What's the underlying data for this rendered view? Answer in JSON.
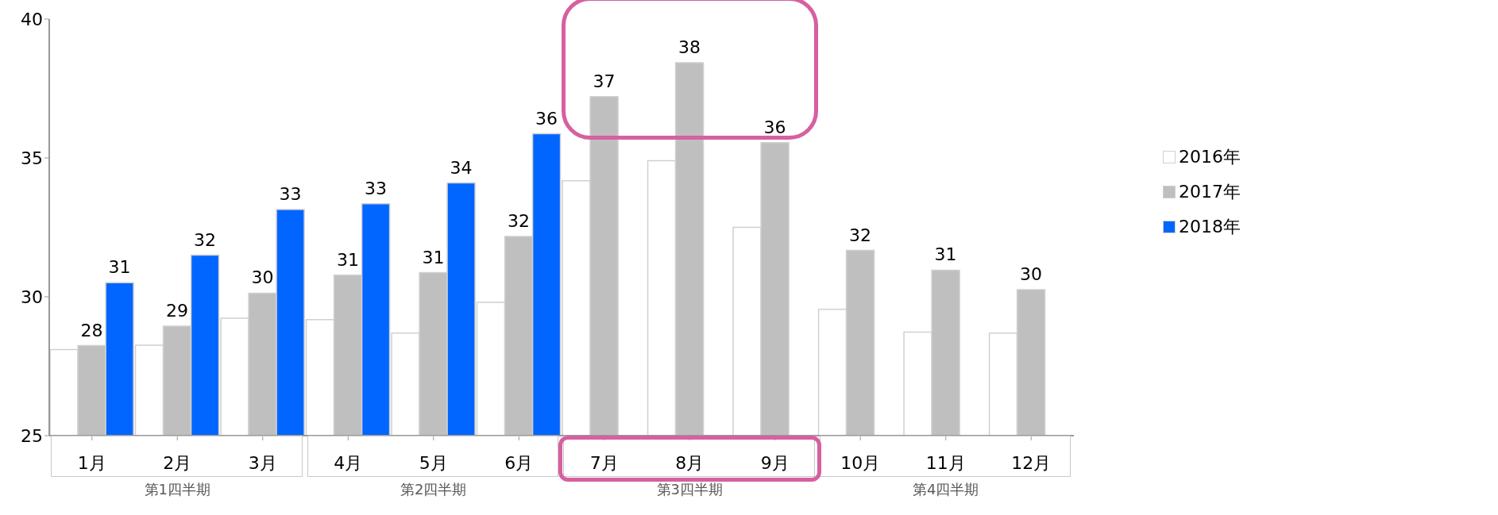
{
  "chart_data": {
    "type": "bar",
    "categories": [
      "1月",
      "2月",
      "3月",
      "4月",
      "5月",
      "6月",
      "7月",
      "8月",
      "9月",
      "10月",
      "11月",
      "12月"
    ],
    "series": [
      {
        "name": "2016年",
        "color": "#ffffff",
        "values": [
          28.1,
          28.26,
          29.23,
          29.18,
          28.69,
          29.8,
          34.18,
          34.9,
          32.5,
          29.55,
          28.73,
          28.69
        ]
      },
      {
        "name": "2017年",
        "color": "#bfbfbf",
        "values": [
          28.24,
          28.94,
          30.13,
          30.78,
          30.87,
          32.17,
          37.21,
          38.43,
          35.55,
          31.67,
          30.96,
          30.26
        ],
        "value_labels": [
          "28",
          "29",
          "30",
          "31",
          "31",
          "32",
          "37",
          "38",
          "36",
          "32",
          "31",
          "30"
        ]
      },
      {
        "name": "2018年",
        "color": "#0066ff",
        "values": [
          30.51,
          31.5,
          33.14,
          33.35,
          34.1,
          35.87,
          null,
          null,
          null,
          null,
          null,
          null
        ],
        "value_labels": [
          "31",
          "32",
          "33",
          "33",
          "34",
          "36",
          null,
          null,
          null,
          null,
          null,
          null
        ]
      }
    ],
    "ylim": [
      25,
      40
    ],
    "yticks": [
      25,
      30,
      35,
      40
    ],
    "legend": "right",
    "annotations": [
      "第1四半期",
      "第2四半期",
      "第3四半期",
      "第4四半期"
    ]
  }
}
